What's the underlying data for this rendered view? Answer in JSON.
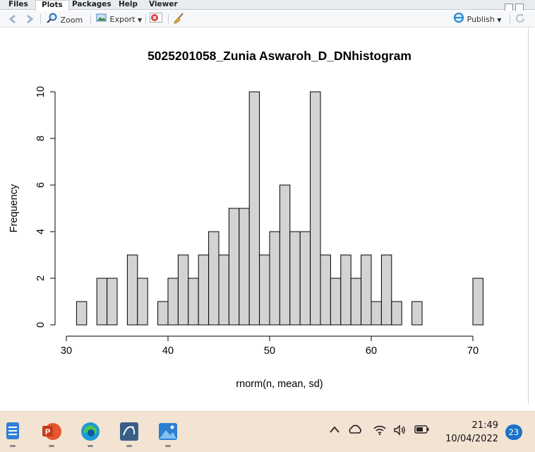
{
  "tabs": [
    {
      "label": "Files",
      "active": false
    },
    {
      "label": "Plots",
      "active": true
    },
    {
      "label": "Packages",
      "active": false
    },
    {
      "label": "Help",
      "active": false
    },
    {
      "label": "Viewer",
      "active": false
    }
  ],
  "toolbar": {
    "zoom_label": "Zoom",
    "export_label": "Export",
    "publish_label": "Publish"
  },
  "chart_data": {
    "type": "bar",
    "title": "5025201058_Zunia Aswaroh_D_DNhistogram",
    "xlabel": "rnorm(n, mean, sd)",
    "ylabel": "Frequency",
    "bin_width": 1,
    "bins": [
      {
        "x0": 31,
        "x1": 32,
        "count": 1
      },
      {
        "x0": 32,
        "x1": 33,
        "count": 0
      },
      {
        "x0": 33,
        "x1": 34,
        "count": 2
      },
      {
        "x0": 34,
        "x1": 35,
        "count": 2
      },
      {
        "x0": 35,
        "x1": 36,
        "count": 0
      },
      {
        "x0": 36,
        "x1": 37,
        "count": 3
      },
      {
        "x0": 37,
        "x1": 38,
        "count": 2
      },
      {
        "x0": 38,
        "x1": 39,
        "count": 0
      },
      {
        "x0": 39,
        "x1": 40,
        "count": 1
      },
      {
        "x0": 40,
        "x1": 41,
        "count": 2
      },
      {
        "x0": 41,
        "x1": 42,
        "count": 3
      },
      {
        "x0": 42,
        "x1": 43,
        "count": 2
      },
      {
        "x0": 43,
        "x1": 44,
        "count": 3
      },
      {
        "x0": 44,
        "x1": 45,
        "count": 4
      },
      {
        "x0": 45,
        "x1": 46,
        "count": 3
      },
      {
        "x0": 46,
        "x1": 47,
        "count": 5
      },
      {
        "x0": 47,
        "x1": 48,
        "count": 5
      },
      {
        "x0": 48,
        "x1": 49,
        "count": 10
      },
      {
        "x0": 49,
        "x1": 50,
        "count": 3
      },
      {
        "x0": 50,
        "x1": 51,
        "count": 4
      },
      {
        "x0": 51,
        "x1": 52,
        "count": 6
      },
      {
        "x0": 52,
        "x1": 53,
        "count": 4
      },
      {
        "x0": 53,
        "x1": 54,
        "count": 4
      },
      {
        "x0": 54,
        "x1": 55,
        "count": 10
      },
      {
        "x0": 55,
        "x1": 56,
        "count": 3
      },
      {
        "x0": 56,
        "x1": 57,
        "count": 2
      },
      {
        "x0": 57,
        "x1": 58,
        "count": 3
      },
      {
        "x0": 58,
        "x1": 59,
        "count": 2
      },
      {
        "x0": 59,
        "x1": 60,
        "count": 3
      },
      {
        "x0": 60,
        "x1": 61,
        "count": 1
      },
      {
        "x0": 61,
        "x1": 62,
        "count": 3
      },
      {
        "x0": 62,
        "x1": 63,
        "count": 1
      },
      {
        "x0": 63,
        "x1": 64,
        "count": 0
      },
      {
        "x0": 64,
        "x1": 65,
        "count": 1
      },
      {
        "x0": 65,
        "x1": 66,
        "count": 0
      },
      {
        "x0": 66,
        "x1": 67,
        "count": 0
      },
      {
        "x0": 67,
        "x1": 68,
        "count": 0
      },
      {
        "x0": 68,
        "x1": 69,
        "count": 0
      },
      {
        "x0": 69,
        "x1": 70,
        "count": 0
      },
      {
        "x0": 70,
        "x1": 71,
        "count": 2
      }
    ],
    "x_ticks": [
      "30",
      "40",
      "50",
      "60",
      "70"
    ],
    "y_ticks": [
      "0",
      "2",
      "4",
      "6",
      "8",
      "10"
    ],
    "xlim": [
      30,
      71
    ],
    "ylim": [
      0,
      10
    ],
    "bar_color": "#d3d3d3",
    "edge_color": "#000000",
    "grid": false
  },
  "taskbar": {
    "apps": [
      "notepad-icon",
      "powerpoint-icon",
      "edge-icon",
      "mysql-icon",
      "photos-icon"
    ],
    "time": "21:49",
    "date": "10/04/2022",
    "notification_count": "23"
  }
}
